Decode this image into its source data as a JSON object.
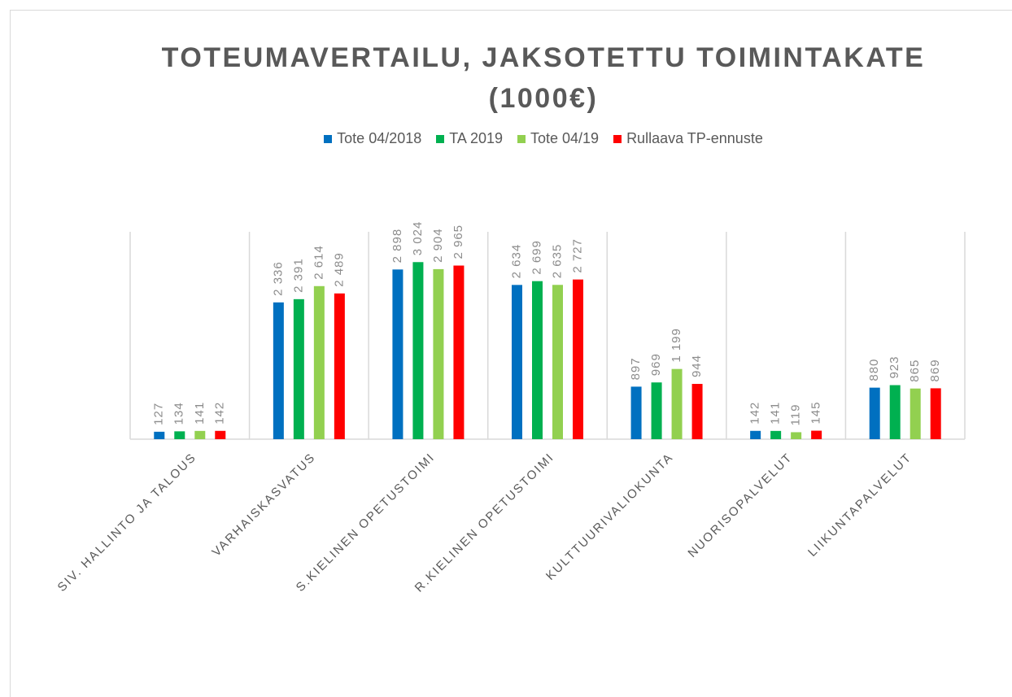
{
  "chart_data": {
    "type": "bar",
    "title": "TOTEUMAVERTAILU, JAKSOTETTU TOIMINTAKATE (1000€)",
    "categories": [
      "SIV. HALLINTO JA TALOUS",
      "VARHAISKASVATUS",
      "S.KIELINEN OPETUSTOIMI",
      "R.KIELINEN OPETUSTOIMI",
      "KULTTUURIVALIOKUNTA",
      "NUORISOPALVELUT",
      "LIIKUNTAPALVELUT"
    ],
    "series": [
      {
        "name": "Tote 04/2018",
        "color": "#0070c0",
        "values": [
          127,
          2336,
          2898,
          2634,
          897,
          142,
          880
        ],
        "value_labels": [
          "127",
          "2 336",
          "2 898",
          "2 634",
          "897",
          "142",
          "880"
        ]
      },
      {
        "name": "TA 2019",
        "color": "#00b050",
        "values": [
          134,
          2391,
          3024,
          2699,
          969,
          141,
          923
        ],
        "value_labels": [
          "134",
          "2 391",
          "3 024",
          "2 699",
          "969",
          "141",
          "923"
        ]
      },
      {
        "name": "Tote 04/19",
        "color": "#92d050",
        "values": [
          141,
          2614,
          2904,
          2635,
          1199,
          119,
          865
        ],
        "value_labels": [
          "141",
          "2 614",
          "2 904",
          "2 635",
          "1 199",
          "119",
          "865"
        ]
      },
      {
        "name": "Rullaava TP-ennuste",
        "color": "#ff0000",
        "values": [
          142,
          2489,
          2965,
          2727,
          944,
          145,
          869
        ],
        "value_labels": [
          "142",
          "2 489",
          "2 965",
          "2 727",
          "944",
          "145",
          "869"
        ]
      }
    ],
    "ylim": [
      0,
      3500
    ],
    "legend": "top"
  }
}
